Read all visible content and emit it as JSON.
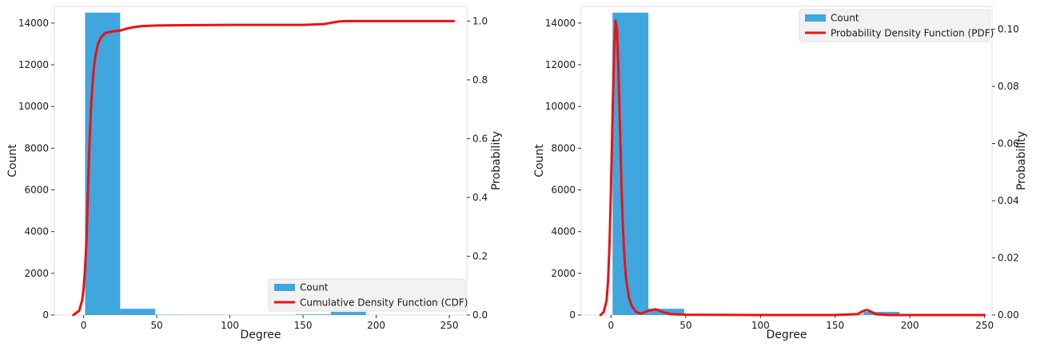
{
  "chart_data": [
    {
      "type": "bar",
      "xlabel": "Degree",
      "ylabel": "Count",
      "y2label": "Probability",
      "xlim": [
        -20,
        262
      ],
      "ylim": [
        0,
        14800
      ],
      "y2lim": [
        0,
        1.05
      ],
      "xticks": [
        0,
        50,
        100,
        150,
        200,
        250
      ],
      "yticks": [
        0,
        2000,
        4000,
        6000,
        8000,
        10000,
        12000,
        14000
      ],
      "y2ticks": [
        0.0,
        0.2,
        0.4,
        0.6,
        0.8,
        1.0
      ],
      "xtick_labels": [
        "0",
        "50",
        "100",
        "150",
        "200",
        "250"
      ],
      "ytick_labels": [
        "0",
        "2000",
        "4000",
        "6000",
        "8000",
        "10000",
        "12000",
        "14000"
      ],
      "y2tick_labels": [
        "0.0",
        "0.2",
        "0.4",
        "0.6",
        "0.8",
        "1.0"
      ],
      "legend_position": "lower-right",
      "bars": {
        "name": "Count",
        "color": "#40a6de",
        "edges": [
          1,
          25,
          49,
          73,
          97,
          121,
          145,
          169,
          193
        ],
        "values": [
          14500,
          300,
          15,
          10,
          5,
          5,
          30,
          150
        ]
      },
      "series": [
        {
          "name": "Cumulative Density Function (CDF)",
          "color": "#ee1111",
          "axis": "secondary",
          "x": [
            -7,
            -3,
            -1,
            0,
            1,
            2,
            3,
            4,
            5,
            6,
            7,
            8,
            10,
            12,
            15,
            20,
            25,
            30,
            35,
            40,
            50,
            70,
            100,
            150,
            165,
            170,
            175,
            180,
            200,
            250,
            253
          ],
          "y": [
            0.0,
            0.015,
            0.05,
            0.09,
            0.16,
            0.26,
            0.42,
            0.58,
            0.7,
            0.78,
            0.84,
            0.88,
            0.925,
            0.945,
            0.96,
            0.965,
            0.968,
            0.975,
            0.98,
            0.983,
            0.985,
            0.986,
            0.987,
            0.987,
            0.99,
            0.995,
            0.999,
            1.0,
            1.0,
            1.0,
            1.0
          ]
        }
      ]
    },
    {
      "type": "bar",
      "xlabel": "Degree",
      "ylabel": "Count",
      "y2label": "Probability",
      "xlim": [
        -20,
        255
      ],
      "ylim": [
        0,
        14800
      ],
      "y2lim": [
        0,
        0.108
      ],
      "xticks": [
        0,
        50,
        100,
        150,
        200,
        250
      ],
      "yticks": [
        0,
        2000,
        4000,
        6000,
        8000,
        10000,
        12000,
        14000
      ],
      "y2ticks": [
        0.0,
        0.02,
        0.04,
        0.06,
        0.08,
        0.1
      ],
      "xtick_labels": [
        "0",
        "50",
        "100",
        "150",
        "200",
        "250"
      ],
      "ytick_labels": [
        "0",
        "2000",
        "4000",
        "6000",
        "8000",
        "10000",
        "12000",
        "14000"
      ],
      "y2tick_labels": [
        "0.00",
        "0.02",
        "0.04",
        "0.06",
        "0.08",
        "0.10"
      ],
      "legend_position": "upper-right",
      "bars": {
        "name": "Count",
        "color": "#40a6de",
        "edges": [
          1,
          25,
          49,
          73,
          97,
          121,
          145,
          169,
          193
        ],
        "values": [
          14500,
          300,
          15,
          10,
          5,
          5,
          30,
          150
        ]
      },
      "series": [
        {
          "name": "Probability Density Function (PDF)",
          "color": "#ee1111",
          "axis": "secondary",
          "x": [
            -7,
            -5,
            -3,
            -2,
            -1,
            0,
            1,
            2,
            3,
            4,
            5,
            6,
            7,
            8,
            9,
            10,
            12,
            14,
            17,
            20,
            25,
            30,
            35,
            40,
            50,
            100,
            150,
            165,
            168,
            171,
            174,
            177,
            185,
            250
          ],
          "y": [
            0.0,
            0.001,
            0.005,
            0.012,
            0.025,
            0.045,
            0.07,
            0.092,
            0.103,
            0.1,
            0.085,
            0.065,
            0.045,
            0.03,
            0.02,
            0.013,
            0.006,
            0.003,
            0.001,
            0.0005,
            0.0015,
            0.002,
            0.001,
            0.0003,
            0.0001,
            0.0,
            0.0,
            0.0003,
            0.0012,
            0.0018,
            0.0012,
            0.0003,
            0.0,
            0.0
          ]
        }
      ]
    }
  ]
}
